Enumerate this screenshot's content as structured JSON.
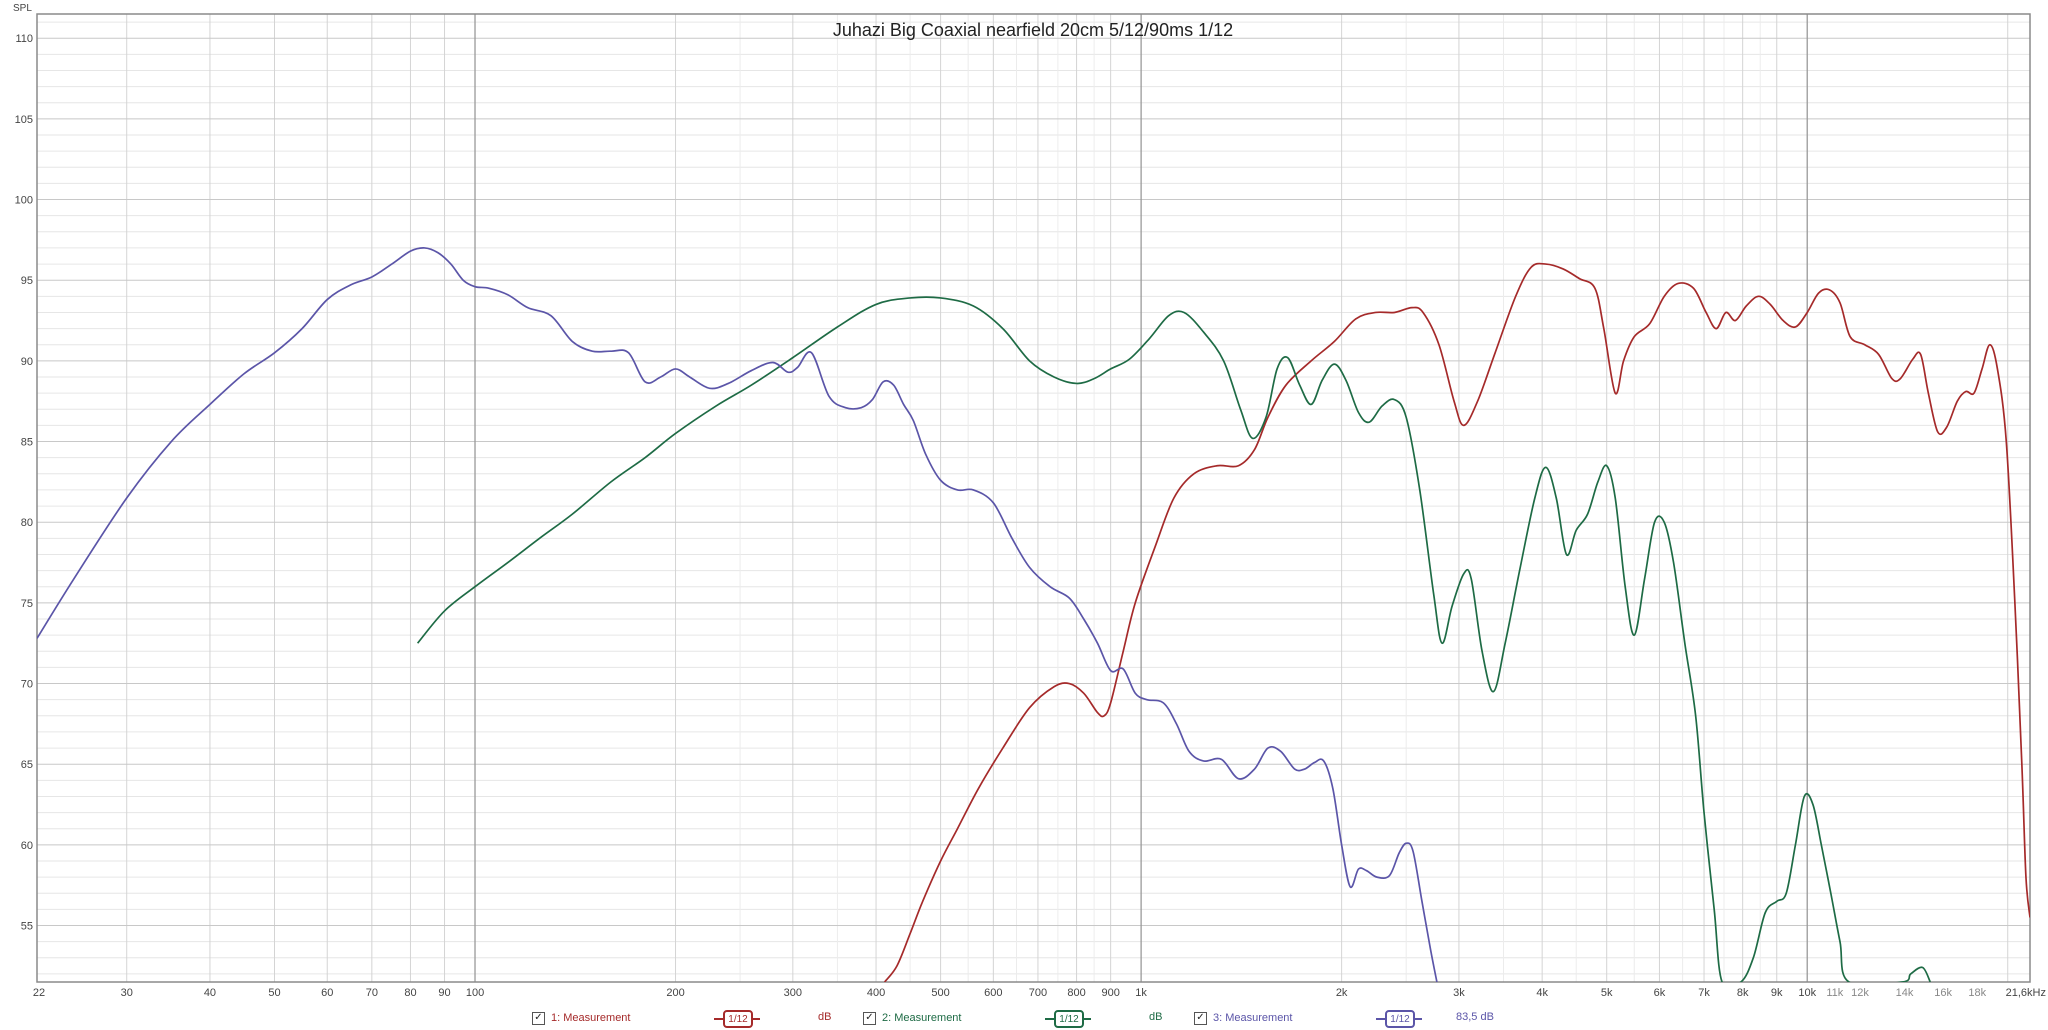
{
  "chart_data": {
    "type": "line",
    "title": "Juhazi Big Coaxial nearfield 20cm 5/12/90ms 1/12",
    "ylabel": "SPL",
    "xlabel": "",
    "x_scale": "log",
    "xlim": [
      22,
      21600
    ],
    "ylim": [
      51.5,
      111.5
    ],
    "grid": true,
    "y_ticks": [
      55,
      60,
      65,
      70,
      75,
      80,
      85,
      90,
      95,
      100,
      105,
      110
    ],
    "x_ticks": [
      {
        "v": 22,
        "label": "22"
      },
      {
        "v": 30,
        "label": "30"
      },
      {
        "v": 40,
        "label": "40"
      },
      {
        "v": 50,
        "label": "50"
      },
      {
        "v": 60,
        "label": "60"
      },
      {
        "v": 70,
        "label": "70"
      },
      {
        "v": 80,
        "label": "80"
      },
      {
        "v": 90,
        "label": "90"
      },
      {
        "v": 100,
        "label": "100"
      },
      {
        "v": 200,
        "label": "200"
      },
      {
        "v": 300,
        "label": "300"
      },
      {
        "v": 400,
        "label": "400"
      },
      {
        "v": 500,
        "label": "500"
      },
      {
        "v": 600,
        "label": "600"
      },
      {
        "v": 700,
        "label": "700"
      },
      {
        "v": 800,
        "label": "800"
      },
      {
        "v": 900,
        "label": "900"
      },
      {
        "v": 1000,
        "label": "1k"
      },
      {
        "v": 2000,
        "label": "2k"
      },
      {
        "v": 3000,
        "label": "3k"
      },
      {
        "v": 4000,
        "label": "4k"
      },
      {
        "v": 5000,
        "label": "5k"
      },
      {
        "v": 6000,
        "label": "6k"
      },
      {
        "v": 7000,
        "label": "7k"
      },
      {
        "v": 8000,
        "label": "8k"
      },
      {
        "v": 9000,
        "label": "9k"
      },
      {
        "v": 10000,
        "label": "10k"
      },
      {
        "v": 11000,
        "label": "11k"
      },
      {
        "v": 12000,
        "label": "12k"
      },
      {
        "v": 14000,
        "label": "14k"
      },
      {
        "v": 16000,
        "label": "16k"
      },
      {
        "v": 18000,
        "label": "18k"
      },
      {
        "v": 21600,
        "label": "21,6kHz"
      }
    ],
    "series": [
      {
        "name": "1: Measurement",
        "color": "#a52a2a",
        "points": [
          [
            412,
            51.5
          ],
          [
            430,
            52.5
          ],
          [
            450,
            54.5
          ],
          [
            470,
            56.5
          ],
          [
            500,
            59
          ],
          [
            530,
            61
          ],
          [
            570,
            63.5
          ],
          [
            620,
            66
          ],
          [
            680,
            68.5
          ],
          [
            740,
            69.8
          ],
          [
            780,
            70
          ],
          [
            820,
            69.4
          ],
          [
            860,
            68.2
          ],
          [
            880,
            68
          ],
          [
            900,
            68.8
          ],
          [
            940,
            72
          ],
          [
            980,
            75
          ],
          [
            1050,
            78.5
          ],
          [
            1120,
            81.5
          ],
          [
            1200,
            83
          ],
          [
            1300,
            83.5
          ],
          [
            1400,
            83.5
          ],
          [
            1480,
            84.5
          ],
          [
            1550,
            86.5
          ],
          [
            1650,
            88.5
          ],
          [
            1800,
            90
          ],
          [
            1950,
            91.2
          ],
          [
            2100,
            92.6
          ],
          [
            2250,
            93
          ],
          [
            2400,
            93
          ],
          [
            2550,
            93.3
          ],
          [
            2650,
            93
          ],
          [
            2800,
            91
          ],
          [
            2950,
            87.5
          ],
          [
            3050,
            86
          ],
          [
            3200,
            87.5
          ],
          [
            3400,
            90.5
          ],
          [
            3650,
            94
          ],
          [
            3850,
            95.8
          ],
          [
            4050,
            96
          ],
          [
            4300,
            95.7
          ],
          [
            4550,
            95.1
          ],
          [
            4800,
            94.5
          ],
          [
            4950,
            92
          ],
          [
            5150,
            88
          ],
          [
            5300,
            90
          ],
          [
            5500,
            91.5
          ],
          [
            5800,
            92.3
          ],
          [
            6100,
            94
          ],
          [
            6400,
            94.8
          ],
          [
            6750,
            94.5
          ],
          [
            7050,
            93
          ],
          [
            7300,
            92
          ],
          [
            7550,
            93
          ],
          [
            7800,
            92.5
          ],
          [
            8100,
            93.4
          ],
          [
            8450,
            94
          ],
          [
            8800,
            93.5
          ],
          [
            9200,
            92.5
          ],
          [
            9600,
            92.1
          ],
          [
            10000,
            93
          ],
          [
            10400,
            94.2
          ],
          [
            10800,
            94.4
          ],
          [
            11200,
            93.6
          ],
          [
            11600,
            91.5
          ],
          [
            12200,
            91
          ],
          [
            12800,
            90.4
          ],
          [
            13400,
            88.9
          ],
          [
            13800,
            88.9
          ],
          [
            14400,
            90.1
          ],
          [
            14800,
            90.4
          ],
          [
            15200,
            88
          ],
          [
            15700,
            85.6
          ],
          [
            16200,
            85.9
          ],
          [
            16800,
            87.5
          ],
          [
            17300,
            88.1
          ],
          [
            17800,
            88
          ],
          [
            18300,
            89.5
          ],
          [
            18800,
            91
          ],
          [
            19300,
            89.5
          ],
          [
            19900,
            85
          ],
          [
            20500,
            75
          ],
          [
            21000,
            65
          ],
          [
            21300,
            58
          ],
          [
            21600,
            55.5
          ]
        ]
      },
      {
        "name": "2: Measurement",
        "color": "#1e6b45",
        "points": [
          [
            82,
            72.5
          ],
          [
            90,
            74.5
          ],
          [
            100,
            76
          ],
          [
            112,
            77.5
          ],
          [
            125,
            79
          ],
          [
            140,
            80.5
          ],
          [
            160,
            82.5
          ],
          [
            180,
            84
          ],
          [
            200,
            85.5
          ],
          [
            230,
            87.2
          ],
          [
            260,
            88.5
          ],
          [
            300,
            90.2
          ],
          [
            350,
            92.1
          ],
          [
            400,
            93.5
          ],
          [
            450,
            93.9
          ],
          [
            500,
            93.9
          ],
          [
            560,
            93.4
          ],
          [
            620,
            92
          ],
          [
            680,
            90
          ],
          [
            740,
            89
          ],
          [
            800,
            88.6
          ],
          [
            850,
            88.9
          ],
          [
            900,
            89.5
          ],
          [
            960,
            90.1
          ],
          [
            1030,
            91.4
          ],
          [
            1100,
            92.8
          ],
          [
            1160,
            93
          ],
          [
            1240,
            91.8
          ],
          [
            1330,
            90
          ],
          [
            1410,
            87
          ],
          [
            1470,
            85.2
          ],
          [
            1540,
            86.5
          ],
          [
            1600,
            89.5
          ],
          [
            1660,
            90.2
          ],
          [
            1730,
            88.5
          ],
          [
            1800,
            87.3
          ],
          [
            1870,
            88.8
          ],
          [
            1950,
            89.8
          ],
          [
            2030,
            88.8
          ],
          [
            2120,
            86.8
          ],
          [
            2200,
            86.2
          ],
          [
            2300,
            87.2
          ],
          [
            2400,
            87.6
          ],
          [
            2500,
            86.5
          ],
          [
            2620,
            82
          ],
          [
            2750,
            75.5
          ],
          [
            2830,
            72.5
          ],
          [
            2930,
            74.8
          ],
          [
            3050,
            76.8
          ],
          [
            3130,
            76.5
          ],
          [
            3250,
            72
          ],
          [
            3380,
            69.5
          ],
          [
            3520,
            72.5
          ],
          [
            3700,
            77
          ],
          [
            3900,
            81.5
          ],
          [
            4050,
            83.4
          ],
          [
            4200,
            81.5
          ],
          [
            4350,
            78
          ],
          [
            4500,
            79.5
          ],
          [
            4680,
            80.5
          ],
          [
            4850,
            82.5
          ],
          [
            5000,
            83.5
          ],
          [
            5150,
            81.5
          ],
          [
            5330,
            76
          ],
          [
            5500,
            73
          ],
          [
            5700,
            76.5
          ],
          [
            5900,
            80
          ],
          [
            6100,
            80
          ],
          [
            6300,
            77.5
          ],
          [
            6550,
            72.5
          ],
          [
            6800,
            68
          ],
          [
            7000,
            62
          ],
          [
            7250,
            56
          ],
          [
            7450,
            51.5
          ],
          [
            7950,
            51.5
          ],
          [
            8300,
            53
          ],
          [
            8650,
            55.8
          ],
          [
            9000,
            56.5
          ],
          [
            9300,
            57
          ],
          [
            9600,
            60
          ],
          [
            9900,
            63
          ],
          [
            10200,
            62.5
          ],
          [
            10500,
            60
          ],
          [
            10850,
            57
          ],
          [
            11200,
            54
          ],
          [
            11550,
            51.5
          ],
          [
            13900,
            51.5
          ],
          [
            14300,
            52
          ],
          [
            14900,
            52.4
          ],
          [
            15300,
            51.5
          ]
        ]
      },
      {
        "name": "3: Measurement",
        "color": "#5b55a8",
        "points": [
          [
            22,
            72.8
          ],
          [
            25,
            76.5
          ],
          [
            30,
            81.5
          ],
          [
            35,
            85
          ],
          [
            40,
            87.3
          ],
          [
            45,
            89.2
          ],
          [
            50,
            90.5
          ],
          [
            55,
            92
          ],
          [
            60,
            93.8
          ],
          [
            65,
            94.7
          ],
          [
            70,
            95.2
          ],
          [
            75,
            96
          ],
          [
            80,
            96.8
          ],
          [
            84,
            97
          ],
          [
            88,
            96.7
          ],
          [
            92,
            96
          ],
          [
            96,
            95
          ],
          [
            100,
            94.6
          ],
          [
            105,
            94.5
          ],
          [
            112,
            94.1
          ],
          [
            120,
            93.3
          ],
          [
            130,
            92.8
          ],
          [
            140,
            91.2
          ],
          [
            150,
            90.6
          ],
          [
            160,
            90.6
          ],
          [
            170,
            90.5
          ],
          [
            180,
            88.7
          ],
          [
            190,
            89
          ],
          [
            200,
            89.5
          ],
          [
            210,
            89
          ],
          [
            225,
            88.3
          ],
          [
            240,
            88.6
          ],
          [
            260,
            89.4
          ],
          [
            280,
            89.9
          ],
          [
            295,
            89.3
          ],
          [
            305,
            89.6
          ],
          [
            320,
            90.5
          ],
          [
            340,
            87.8
          ],
          [
            360,
            87.1
          ],
          [
            380,
            87.1
          ],
          [
            395,
            87.6
          ],
          [
            410,
            88.7
          ],
          [
            425,
            88.5
          ],
          [
            440,
            87.3
          ],
          [
            455,
            86.3
          ],
          [
            475,
            84.2
          ],
          [
            500,
            82.6
          ],
          [
            530,
            82
          ],
          [
            560,
            82
          ],
          [
            600,
            81.2
          ],
          [
            640,
            79
          ],
          [
            680,
            77.2
          ],
          [
            730,
            76
          ],
          [
            780,
            75.3
          ],
          [
            820,
            74
          ],
          [
            860,
            72.5
          ],
          [
            900,
            70.8
          ],
          [
            940,
            70.9
          ],
          [
            980,
            69.4
          ],
          [
            1020,
            69
          ],
          [
            1080,
            68.8
          ],
          [
            1130,
            67.5
          ],
          [
            1180,
            65.8
          ],
          [
            1240,
            65.2
          ],
          [
            1320,
            65.3
          ],
          [
            1400,
            64.1
          ],
          [
            1480,
            64.7
          ],
          [
            1550,
            66
          ],
          [
            1620,
            65.8
          ],
          [
            1700,
            64.7
          ],
          [
            1760,
            64.7
          ],
          [
            1820,
            65.1
          ],
          [
            1880,
            65.2
          ],
          [
            1940,
            63.5
          ],
          [
            2000,
            60
          ],
          [
            2060,
            57.4
          ],
          [
            2120,
            58.5
          ],
          [
            2180,
            58.4
          ],
          [
            2260,
            58
          ],
          [
            2360,
            58.1
          ],
          [
            2440,
            59.5
          ],
          [
            2500,
            60.1
          ],
          [
            2560,
            59.6
          ],
          [
            2640,
            56.5
          ],
          [
            2720,
            53.5
          ],
          [
            2780,
            51.5
          ]
        ]
      }
    ]
  },
  "legend": {
    "entries": [
      {
        "label": "1: Measurement",
        "smoothing": "1/12",
        "unit": "dB",
        "color": "#a52a2a"
      },
      {
        "label": "2: Measurement",
        "smoothing": "1/12",
        "unit": "dB",
        "color": "#1e6b45"
      },
      {
        "label": "3: Measurement",
        "smoothing": "1/12",
        "unit": "83,5 dB",
        "color": "#5b55a8"
      }
    ]
  }
}
